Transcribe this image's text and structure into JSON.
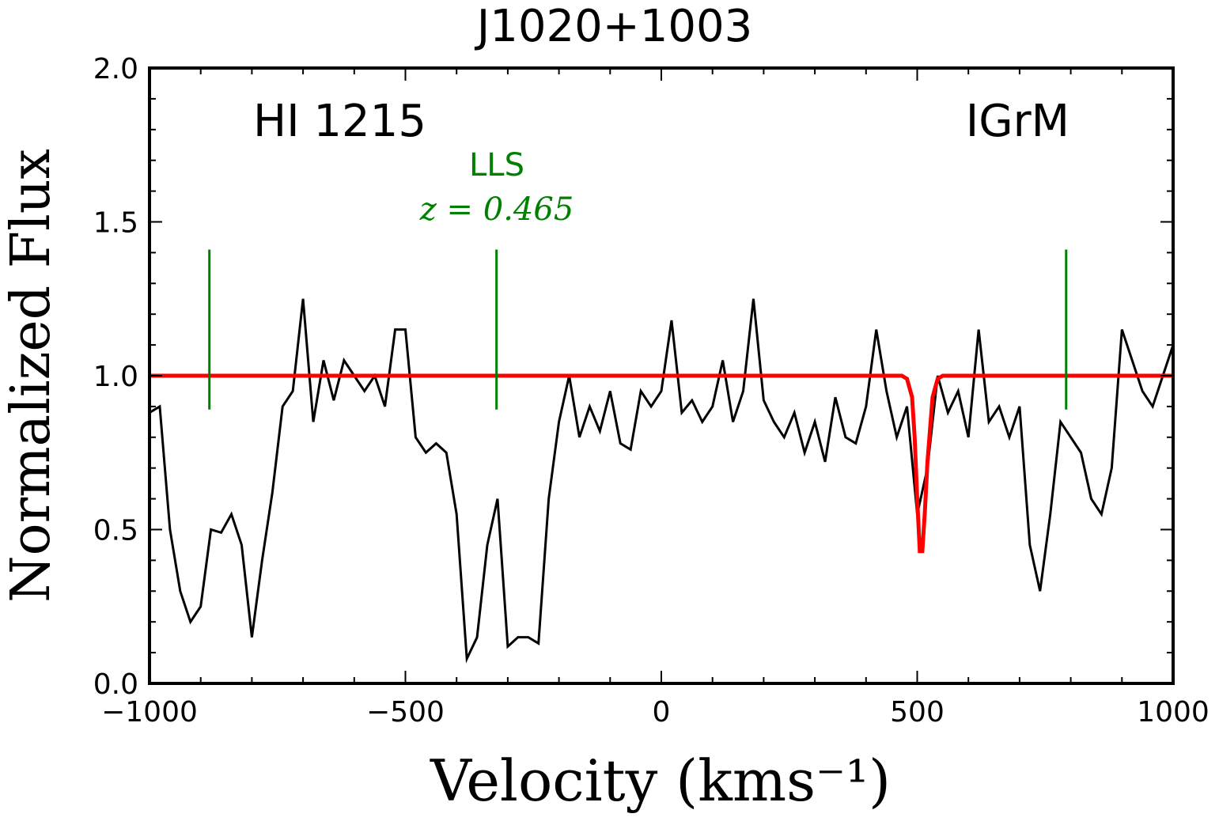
{
  "chart_data": {
    "type": "line",
    "title": "J1020+1003",
    "xlabel": "Velocity (kms⁻¹)",
    "ylabel": "Normalized Flux",
    "xlim": [
      -1000,
      1000
    ],
    "ylim": [
      0,
      2
    ],
    "xticks": [
      {
        "value": -1000,
        "label": "−1000"
      },
      {
        "value": -500,
        "label": "−500"
      },
      0,
      500,
      1000
    ],
    "yticks": [
      {
        "value": 0,
        "label": "0.0"
      },
      0.5,
      {
        "value": 1,
        "label": "1.0"
      },
      1.5,
      {
        "value": 2,
        "label": "2.0"
      }
    ],
    "xminorticks": [
      -900,
      -800,
      -700,
      -600,
      -400,
      -300,
      -200,
      -100,
      100,
      200,
      300,
      400,
      600,
      700,
      800,
      900
    ],
    "yminorticks": [
      0.1,
      0.2,
      0.3,
      0.4,
      0.6,
      0.7,
      0.8,
      0.9,
      1.1,
      1.2,
      1.3,
      1.4,
      1.6,
      1.7,
      1.8,
      1.9
    ],
    "annotations": [
      {
        "text": "HI 1215",
        "color": "black"
      },
      {
        "text": "IGrM",
        "color": "black"
      },
      {
        "text": "LLS",
        "color": "green"
      },
      {
        "text": "z = 0.465",
        "color": "green"
      }
    ],
    "markers": {
      "x": [
        -883,
        -322,
        791
      ],
      "ymin": 0.89,
      "ymax": 1.41,
      "color": "green"
    },
    "series": [
      {
        "color": "black",
        "x": [
          -1000,
          -980,
          -960,
          -940,
          -920,
          -900,
          -880,
          -860,
          -840,
          -820,
          -800,
          -780,
          -760,
          -740,
          -720,
          -700,
          -680,
          -660,
          -640,
          -620,
          -600,
          -580,
          -560,
          -540,
          -520,
          -500,
          -480,
          -460,
          -440,
          -420,
          -400,
          -380,
          -360,
          -340,
          -320,
          -300,
          -280,
          -260,
          -240,
          -220,
          -200,
          -180,
          -160,
          -140,
          -120,
          -100,
          -80,
          -60,
          -40,
          -20,
          0,
          20,
          40,
          60,
          80,
          100,
          120,
          140,
          160,
          180,
          200,
          220,
          240,
          260,
          280,
          300,
          320,
          340,
          360,
          380,
          400,
          420,
          440,
          460,
          480,
          500,
          520,
          540,
          560,
          580,
          600,
          620,
          640,
          660,
          680,
          700,
          720,
          740,
          760,
          780,
          800,
          820,
          840,
          860,
          880,
          900,
          920,
          940,
          960,
          980,
          1000
        ],
        "values": [
          0.88,
          0.9,
          0.5,
          0.3,
          0.2,
          0.25,
          0.5,
          0.49,
          0.55,
          0.45,
          0.15,
          0.4,
          0.62,
          0.9,
          0.95,
          1.25,
          0.85,
          1.05,
          0.92,
          1.05,
          1.0,
          0.95,
          1.0,
          0.9,
          1.15,
          1.15,
          0.8,
          0.75,
          0.78,
          0.75,
          0.55,
          0.08,
          0.15,
          0.45,
          0.6,
          0.12,
          0.15,
          0.15,
          0.13,
          0.6,
          0.85,
          1.0,
          0.8,
          0.9,
          0.82,
          0.95,
          0.78,
          0.76,
          0.95,
          0.9,
          0.95,
          1.18,
          0.88,
          0.92,
          0.85,
          0.9,
          1.05,
          0.85,
          0.95,
          1.25,
          0.92,
          0.85,
          0.8,
          0.88,
          0.75,
          0.85,
          0.72,
          0.93,
          0.8,
          0.78,
          0.9,
          1.15,
          0.95,
          0.8,
          0.9,
          0.55,
          0.7,
          1.0,
          0.88,
          0.95,
          0.8,
          1.15,
          0.85,
          0.9,
          0.8,
          0.9,
          0.45,
          0.3,
          0.55,
          0.85,
          0.8,
          0.75,
          0.6,
          0.55,
          0.7,
          1.15,
          1.05,
          0.95,
          0.9,
          1.0,
          1.1
        ]
      },
      {
        "color": "red",
        "x": [
          -1000,
          470,
          480,
          490,
          495,
          500,
          505,
          510,
          515,
          520,
          530,
          540,
          550,
          1000
        ],
        "values": [
          1,
          1,
          0.99,
          0.93,
          0.8,
          0.6,
          0.43,
          0.43,
          0.56,
          0.72,
          0.93,
          0.99,
          1,
          1
        ]
      }
    ]
  }
}
